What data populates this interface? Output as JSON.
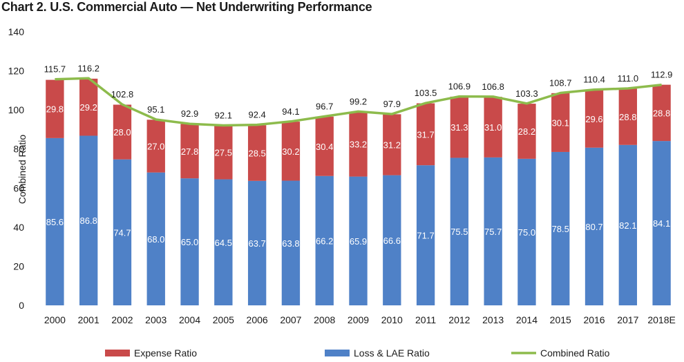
{
  "title": "Chart 2. U.S. Commercial Auto — Net Underwriting Performance",
  "chart_data": {
    "type": "bar",
    "stacked": true,
    "categories": [
      "2000",
      "2001",
      "2002",
      "2003",
      "2004",
      "2005",
      "2006",
      "2007",
      "2008",
      "2009",
      "2010",
      "2011",
      "2012",
      "2013",
      "2014",
      "2015",
      "2016",
      "2017",
      "2018E"
    ],
    "ylabel": "Combined Ratio",
    "ylim": [
      0,
      140
    ],
    "yticks": [
      "0",
      "20",
      "40",
      "60",
      "80",
      "100",
      "120",
      "140"
    ],
    "series": [
      {
        "name": "Loss & LAE Ratio",
        "type": "bar",
        "color": "#4f81c7",
        "values": [
          85.6,
          86.8,
          74.7,
          68.0,
          65.0,
          64.5,
          63.7,
          63.8,
          66.2,
          65.9,
          66.6,
          71.7,
          75.5,
          75.7,
          75.0,
          78.5,
          80.7,
          82.1,
          84.1
        ],
        "labels": [
          "85.6",
          "86.8",
          "74.7",
          "68.0",
          "65.0",
          "64.5",
          "63.7",
          "63.8",
          "66.2",
          "65.9",
          "66.6",
          "71.7",
          "75.5",
          "75.7",
          "75.0",
          "78.5",
          "80.7",
          "82.1",
          "84.1"
        ]
      },
      {
        "name": "Expense Ratio",
        "type": "bar",
        "color": "#c94a4a",
        "values": [
          29.8,
          29.2,
          28.0,
          27.0,
          27.8,
          27.5,
          28.5,
          30.2,
          30.4,
          33.2,
          31.2,
          31.7,
          31.3,
          31.0,
          28.2,
          30.1,
          29.6,
          28.8,
          28.8
        ],
        "labels": [
          "29.8",
          "29.2",
          "28.0",
          "27.0",
          "27.8",
          "27.5",
          "28.5",
          "30.2",
          "30.4",
          "33.2",
          "31.2",
          "31.7",
          "31.3",
          "31.0",
          "28.2",
          "30.1",
          "29.6",
          "28.8",
          "28.8"
        ]
      },
      {
        "name": "Combined Ratio",
        "type": "line",
        "color": "#8dbb4c",
        "values": [
          115.7,
          116.2,
          102.8,
          95.1,
          92.9,
          92.1,
          92.4,
          94.1,
          96.7,
          99.2,
          97.9,
          103.5,
          106.9,
          106.8,
          103.3,
          108.7,
          110.4,
          111.0,
          112.9
        ],
        "labels": [
          "115.7",
          "116.2",
          "102.8",
          "95.1",
          "92.9",
          "92.1",
          "92.4",
          "94.1",
          "96.7",
          "99.2",
          "97.9",
          "103.5",
          "106.9",
          "106.8",
          "103.3",
          "108.7",
          "110.4",
          "111.0",
          "112.9"
        ]
      }
    ],
    "legend": {
      "placement": "bottom",
      "items": [
        {
          "label": "Expense Ratio",
          "color": "#c94a4a",
          "kind": "box"
        },
        {
          "label": "Loss & LAE Ratio",
          "color": "#4f81c7",
          "kind": "box"
        },
        {
          "label": "Combined Ratio",
          "color": "#8dbb4c",
          "kind": "line"
        }
      ]
    },
    "grid": false
  }
}
